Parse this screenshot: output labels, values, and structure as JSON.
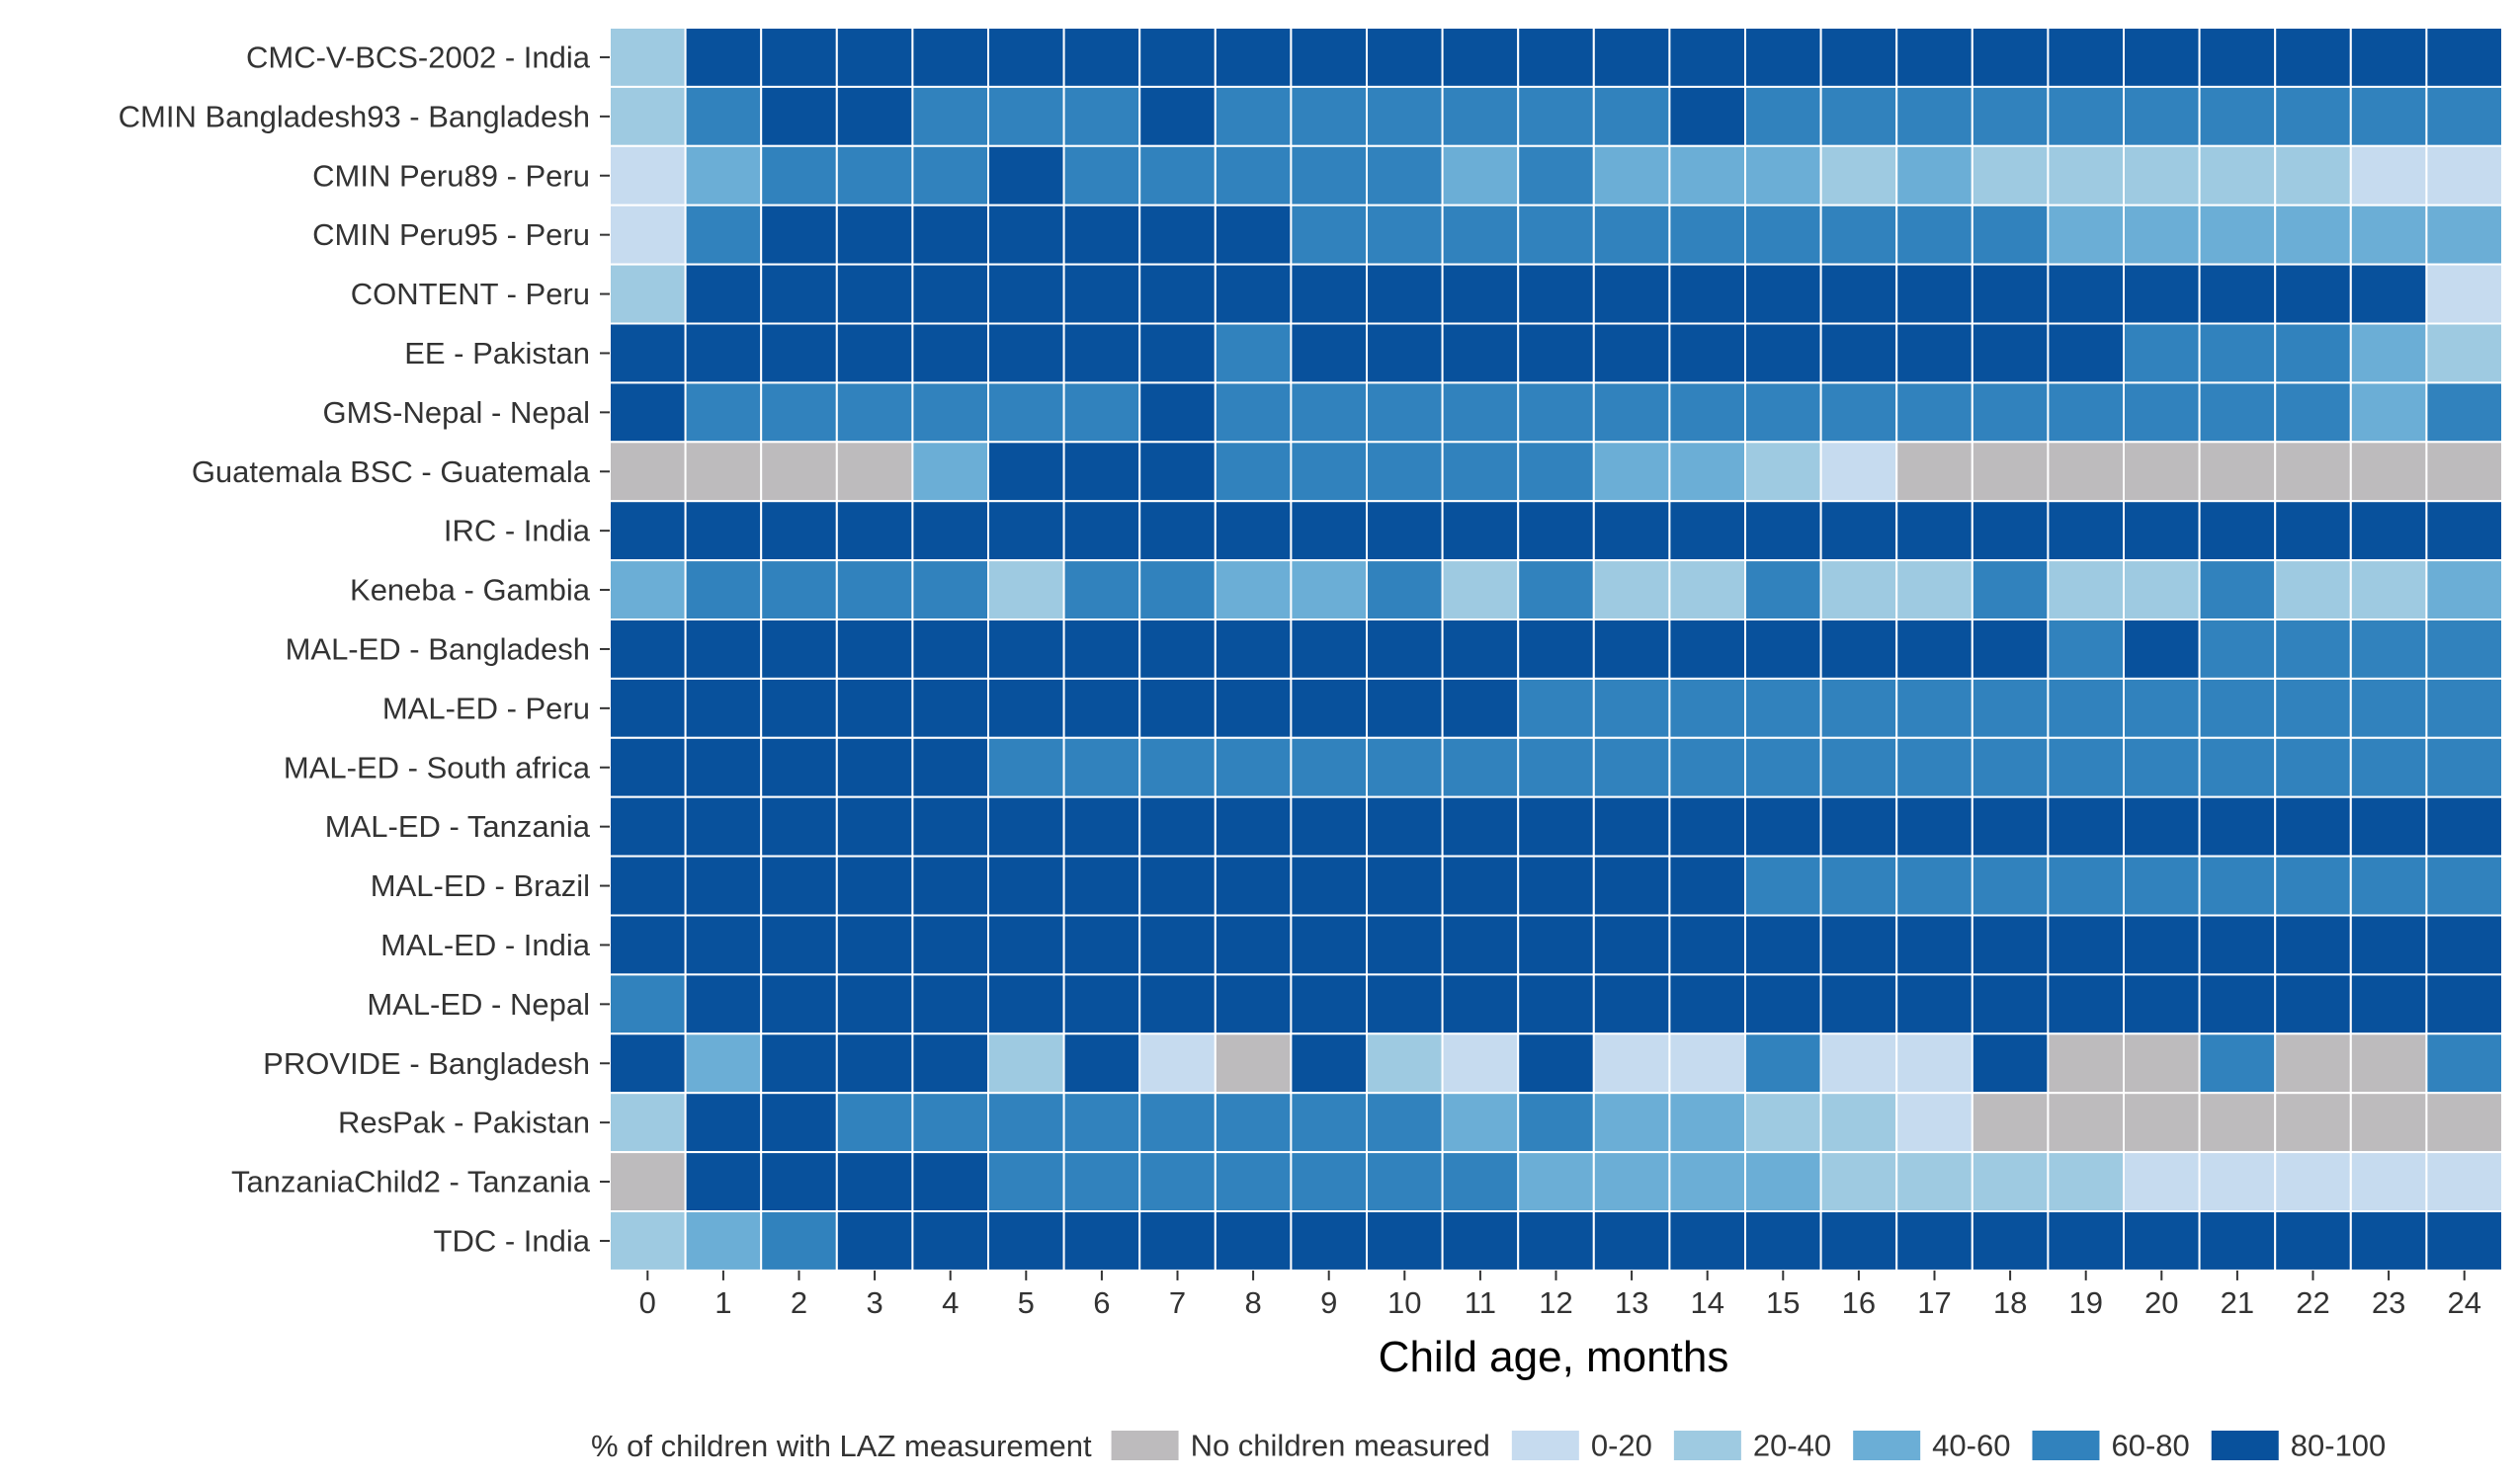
{
  "chart_data": {
    "type": "heatmap",
    "xlabel": "Child age, months",
    "x": [
      "0",
      "1",
      "2",
      "3",
      "4",
      "5",
      "6",
      "7",
      "8",
      "9",
      "10",
      "11",
      "12",
      "13",
      "14",
      "15",
      "16",
      "17",
      "18",
      "19",
      "20",
      "21",
      "22",
      "23",
      "24"
    ],
    "rows": [
      "CMC-V-BCS-2002 - India",
      "CMIN Bangladesh93 - Bangladesh",
      "CMIN Peru89 - Peru",
      "CMIN Peru95 - Peru",
      "CONTENT - Peru",
      "EE - Pakistan",
      "GMS-Nepal - Nepal",
      "Guatemala BSC - Guatemala",
      "IRC - India",
      "Keneba - Gambia",
      "MAL-ED - Bangladesh",
      "MAL-ED - Peru",
      "MAL-ED - South africa",
      "MAL-ED - Tanzania",
      "MAL-ED - Brazil",
      "MAL-ED - India",
      "MAL-ED - Nepal",
      "PROVIDE - Bangladesh",
      "ResPak - Pakistan",
      "TanzaniaChild2 - Tanzania",
      "TDC - India"
    ],
    "categories": [
      "No children measured",
      "0-20",
      "20-40",
      "40-60",
      "60-80",
      "80-100"
    ],
    "colors": [
      "#bdbbbd",
      "#c6dbef",
      "#9ecae1",
      "#6baed6",
      "#3182bd",
      "#08519c"
    ],
    "values": [
      [
        2,
        5,
        5,
        5,
        5,
        5,
        5,
        5,
        5,
        5,
        5,
        5,
        5,
        5,
        5,
        5,
        5,
        5,
        5,
        5,
        5,
        5,
        5,
        5,
        5
      ],
      [
        2,
        4,
        5,
        5,
        4,
        4,
        4,
        5,
        4,
        4,
        4,
        4,
        4,
        4,
        5,
        4,
        4,
        4,
        4,
        4,
        4,
        4,
        4,
        4,
        4
      ],
      [
        1,
        3,
        4,
        4,
        4,
        5,
        4,
        4,
        4,
        4,
        4,
        3,
        4,
        3,
        3,
        3,
        2,
        3,
        2,
        2,
        2,
        2,
        2,
        1,
        1
      ],
      [
        1,
        4,
        5,
        5,
        5,
        5,
        5,
        5,
        5,
        4,
        4,
        4,
        4,
        4,
        4,
        4,
        4,
        4,
        4,
        3,
        3,
        3,
        3,
        3,
        3
      ],
      [
        2,
        5,
        5,
        5,
        5,
        5,
        5,
        5,
        5,
        5,
        5,
        5,
        5,
        5,
        5,
        5,
        5,
        5,
        5,
        5,
        5,
        5,
        5,
        5,
        1
      ],
      [
        5,
        5,
        5,
        5,
        5,
        5,
        5,
        5,
        4,
        5,
        5,
        5,
        5,
        5,
        5,
        5,
        5,
        5,
        5,
        5,
        4,
        4,
        4,
        3,
        2
      ],
      [
        5,
        4,
        4,
        4,
        4,
        4,
        4,
        5,
        4,
        4,
        4,
        4,
        4,
        4,
        4,
        4,
        4,
        4,
        4,
        4,
        4,
        4,
        4,
        3,
        4
      ],
      [
        0,
        0,
        0,
        0,
        3,
        5,
        5,
        5,
        4,
        4,
        4,
        4,
        4,
        3,
        3,
        2,
        1,
        0,
        0,
        0,
        0,
        0,
        0,
        0,
        0
      ],
      [
        5,
        5,
        5,
        5,
        5,
        5,
        5,
        5,
        5,
        5,
        5,
        5,
        5,
        5,
        5,
        5,
        5,
        5,
        5,
        5,
        5,
        5,
        5,
        5,
        5
      ],
      [
        3,
        4,
        4,
        4,
        4,
        2,
        4,
        4,
        3,
        3,
        4,
        2,
        4,
        2,
        2,
        4,
        2,
        2,
        4,
        2,
        2,
        4,
        2,
        2,
        3
      ],
      [
        5,
        5,
        5,
        5,
        5,
        5,
        5,
        5,
        5,
        5,
        5,
        5,
        5,
        5,
        5,
        5,
        5,
        5,
        5,
        4,
        5,
        4,
        4,
        4,
        4
      ],
      [
        5,
        5,
        5,
        5,
        5,
        5,
        5,
        5,
        5,
        5,
        5,
        5,
        4,
        4,
        4,
        4,
        4,
        4,
        4,
        4,
        4,
        4,
        4,
        4,
        4
      ],
      [
        5,
        5,
        5,
        5,
        5,
        4,
        4,
        4,
        4,
        4,
        4,
        4,
        4,
        4,
        4,
        4,
        4,
        4,
        4,
        4,
        4,
        4,
        4,
        4,
        4
      ],
      [
        5,
        5,
        5,
        5,
        5,
        5,
        5,
        5,
        5,
        5,
        5,
        5,
        5,
        5,
        5,
        5,
        5,
        5,
        5,
        5,
        5,
        5,
        5,
        5,
        5
      ],
      [
        5,
        5,
        5,
        5,
        5,
        5,
        5,
        5,
        5,
        5,
        5,
        5,
        5,
        5,
        5,
        4,
        4,
        4,
        4,
        4,
        4,
        4,
        4,
        4,
        4
      ],
      [
        5,
        5,
        5,
        5,
        5,
        5,
        5,
        5,
        5,
        5,
        5,
        5,
        5,
        5,
        5,
        5,
        5,
        5,
        5,
        5,
        5,
        5,
        5,
        5,
        5
      ],
      [
        4,
        5,
        5,
        5,
        5,
        5,
        5,
        5,
        5,
        5,
        5,
        5,
        5,
        5,
        5,
        5,
        5,
        5,
        5,
        5,
        5,
        5,
        5,
        5,
        5
      ],
      [
        5,
        3,
        5,
        5,
        5,
        2,
        5,
        1,
        0,
        5,
        2,
        1,
        5,
        1,
        1,
        4,
        1,
        1,
        5,
        0,
        0,
        4,
        0,
        0,
        4
      ],
      [
        2,
        5,
        5,
        4,
        4,
        4,
        4,
        4,
        4,
        4,
        4,
        3,
        4,
        3,
        3,
        2,
        2,
        1,
        0,
        0,
        0,
        0,
        0,
        0,
        0
      ],
      [
        0,
        5,
        5,
        5,
        5,
        4,
        4,
        4,
        4,
        4,
        4,
        4,
        3,
        3,
        3,
        3,
        2,
        2,
        2,
        2,
        1,
        1,
        1,
        1,
        1
      ],
      [
        2,
        3,
        4,
        5,
        5,
        5,
        5,
        5,
        5,
        5,
        5,
        5,
        5,
        5,
        5,
        5,
        5,
        5,
        5,
        5,
        5,
        5,
        5,
        5,
        5
      ]
    ],
    "legend": {
      "title": "% of children with LAZ measurement",
      "position": "bottom"
    }
  }
}
